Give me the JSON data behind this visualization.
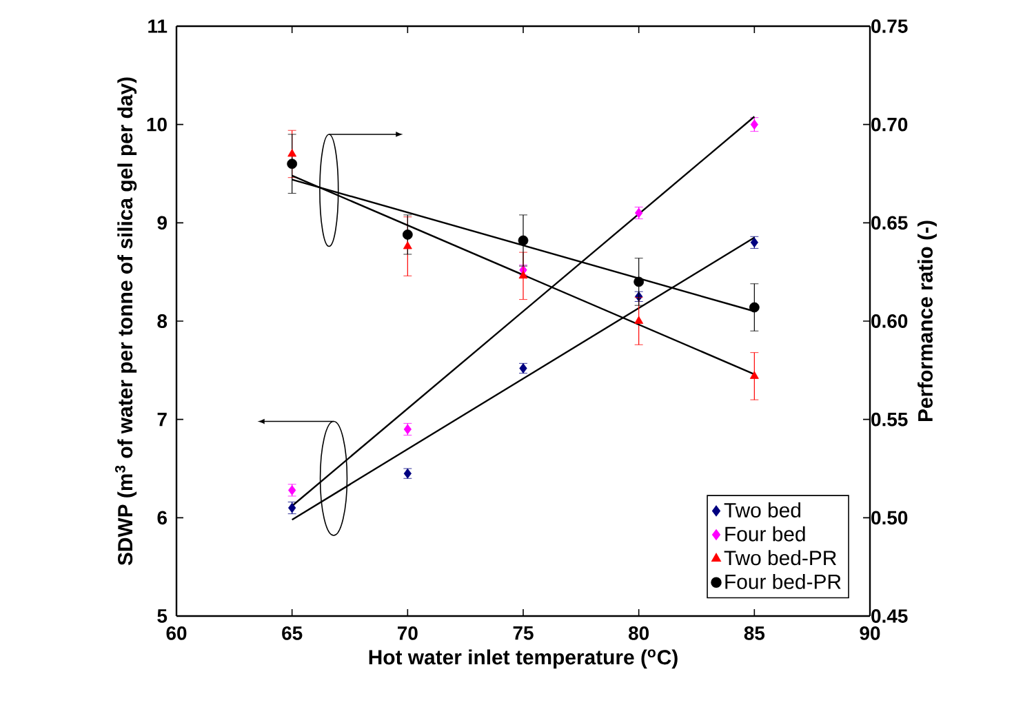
{
  "chart_data": {
    "type": "scatter",
    "xlabel": "Hot water inlet temperature ($^{o}$C)",
    "ylabel": "SDWP (m$^{3}$ of water per tonne of silica gel per day)",
    "y2label": "Performance ratio (-)",
    "xlim": [
      60,
      90
    ],
    "xticks": [
      60,
      65,
      70,
      75,
      80,
      85,
      90
    ],
    "ylim": [
      5,
      11
    ],
    "yticks": [
      5,
      6,
      7,
      8,
      9,
      10,
      11
    ],
    "y2lim": [
      0.45,
      0.75
    ],
    "y2ticks": [
      0.45,
      {
        "value": 0.5,
        "label": "0.50"
      },
      0.55,
      {
        "value": 0.6,
        "label": "0.60"
      },
      0.65,
      {
        "value": 0.7,
        "label": "0.70"
      },
      0.75
    ],
    "legend": "bottom right",
    "grid": false,
    "series": [
      {
        "name": "Two bed",
        "type": "scatter",
        "marker": "diamond",
        "color": "#000080",
        "x": [
          65,
          70,
          75,
          80,
          85
        ],
        "values": [
          6.1,
          6.45,
          7.52,
          8.25,
          8.8
        ],
        "errors": [
          0.06,
          0.05,
          0.05,
          0.05,
          0.06
        ]
      },
      {
        "name": "Four bed",
        "type": "scatter",
        "marker": "diamond",
        "color": "#ff00ff",
        "x": [
          65,
          70,
          75,
          80,
          85
        ],
        "values": [
          6.28,
          6.9,
          8.52,
          9.1,
          10.0
        ],
        "errors": [
          0.06,
          0.06,
          0.05,
          0.06,
          0.07
        ]
      },
      {
        "name": "Two bed-PR",
        "type": "scatter",
        "marker": "triangle",
        "color": "#ff0000",
        "axis": "y2",
        "x": [
          65,
          70,
          75,
          80,
          85
        ],
        "values": [
          0.685,
          0.638,
          0.623,
          0.6,
          0.572
        ],
        "errors": [
          0.012,
          0.015,
          0.012,
          0.012,
          0.012
        ]
      },
      {
        "name": "Four bed-PR",
        "type": "scatter",
        "marker": "circle",
        "color": "#000000",
        "axis": "y2",
        "x": [
          65,
          70,
          75,
          80,
          85
        ],
        "values": [
          0.68,
          0.644,
          0.641,
          0.62,
          0.607
        ],
        "errors": [
          0.015,
          0.01,
          0.013,
          0.012,
          0.012
        ]
      },
      {
        "type": "line",
        "marker": "none",
        "color": "#000000",
        "x": [
          65,
          85
        ],
        "values": [
          5.98,
          8.85
        ]
      },
      {
        "type": "line",
        "marker": "none",
        "color": "#000000",
        "x": [
          65,
          85
        ],
        "values": [
          6.12,
          10.08
        ]
      },
      {
        "type": "line",
        "marker": "none",
        "color": "#000000",
        "axis": "y2",
        "x": [
          65,
          85
        ],
        "values": [
          0.674,
          0.573
        ]
      },
      {
        "type": "line",
        "marker": "none",
        "color": "#000000",
        "axis": "y2",
        "x": [
          65,
          85
        ],
        "values": [
          0.672,
          0.605
        ]
      }
    ]
  }
}
